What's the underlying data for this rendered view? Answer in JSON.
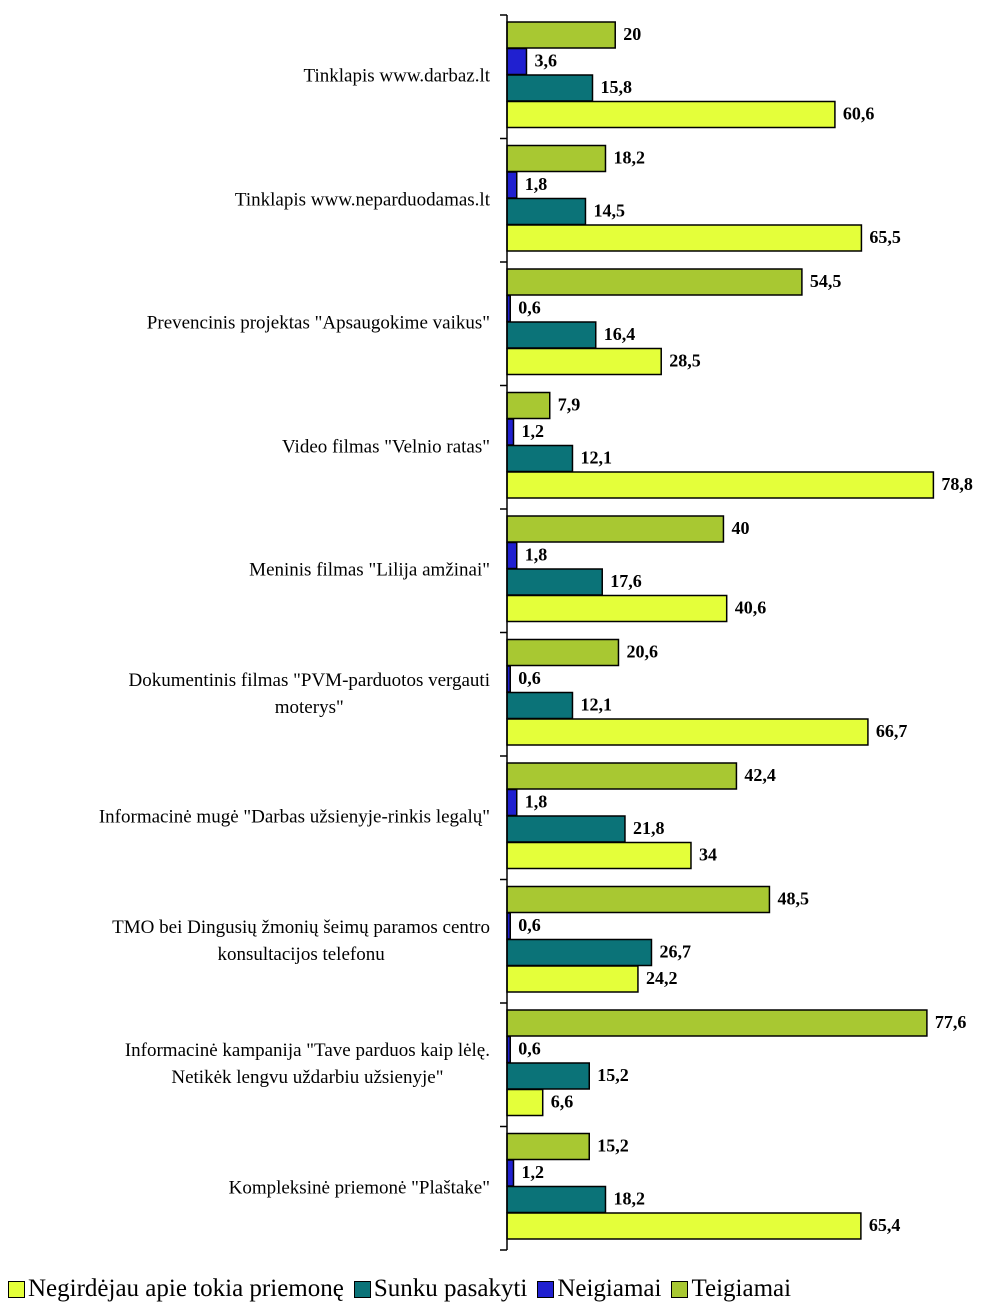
{
  "chart_data": {
    "type": "bar",
    "orientation": "horizontal",
    "categories": [
      "Tinklapis www.darbaz.lt",
      "Tinklapis www.neparduodamas.lt",
      "Prevencinis projektas \"Apsaugokime vaikus\"",
      "Video filmas \"Velnio ratas\"",
      "Meninis filmas \"Lilija amžinai\"",
      "Dokumentinis filmas \"PVM-parduotos vergauti\nmoterys\"",
      "Informacinė mugė \"Darbas užsienyje-rinkis legalų\"",
      "TMO bei Dingusių žmonių šeimų paramos centro\nkonsultacijos telefonu",
      "Informacinė kampanija \"Tave parduos kaip lėlę.\nNetikėk lengvu uždarbiu užsienyje\"",
      "Kompleksinė priemonė \"Plaštake\""
    ],
    "series": [
      {
        "name": "Negirdėjau apie tokia priemonę",
        "color": "#e4ff3a",
        "values": [
          60.6,
          65.5,
          28.5,
          78.8,
          40.6,
          66.7,
          34,
          24.2,
          6.6,
          65.4
        ],
        "value_labels": [
          "60,6",
          "65,5",
          "28,5",
          "78,8",
          "40,6",
          "66,7",
          "34",
          "24,2",
          "6,6",
          "65,4"
        ]
      },
      {
        "name": "Sunku pasakyti",
        "color": "#0b7378",
        "values": [
          15.8,
          14.5,
          16.4,
          12.1,
          17.6,
          12.1,
          21.8,
          26.7,
          15.2,
          18.2
        ],
        "value_labels": [
          "15,8",
          "14,5",
          "16,4",
          "12,1",
          "17,6",
          "12,1",
          "21,8",
          "26,7",
          "15,2",
          "18,2"
        ]
      },
      {
        "name": "Neigiamai",
        "color": "#2020d0",
        "values": [
          3.6,
          1.8,
          0.6,
          1.2,
          1.8,
          0.6,
          1.8,
          0.6,
          0.6,
          1.2
        ],
        "value_labels": [
          "3,6",
          "1,8",
          "0,6",
          "1,2",
          "1,8",
          "0,6",
          "1,8",
          "0,6",
          "0,6",
          "1,2"
        ]
      },
      {
        "name": "Teigiamai",
        "color": "#a8c832",
        "values": [
          20,
          18.2,
          54.5,
          7.9,
          40,
          20.6,
          42.4,
          48.5,
          77.6,
          15.2
        ],
        "value_labels": [
          "20",
          "18,2",
          "54,5",
          "7,9",
          "40",
          "20,6",
          "42,4",
          "48,5",
          "77,6",
          "15,2"
        ]
      }
    ],
    "xlim": [
      0,
      90
    ],
    "legend": "bottom"
  }
}
